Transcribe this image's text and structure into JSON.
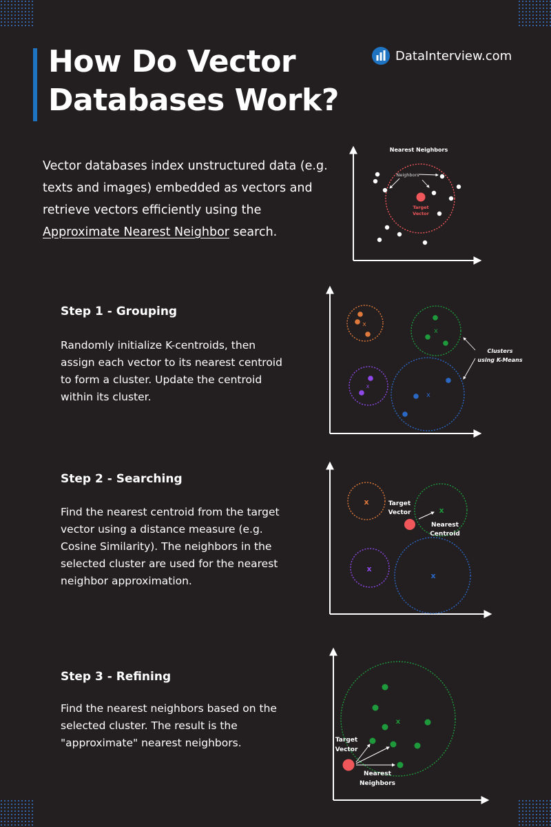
{
  "header": {
    "title_line1": "How Do Vector",
    "title_line2": "Databases Work?",
    "brand": "DataInterview.com",
    "brand_icon": "bar-chart-icon"
  },
  "intro": {
    "text_before": "Vector databases index unstructured data (e.g. texts and images) embedded as vectors and retrieve vectors efficiently using the ",
    "link_text": "Approximate Nearest Neighbor",
    "text_after": " search."
  },
  "diagram_intro": {
    "title": "Nearest Neighbors",
    "neighbors_label": "Neighbors",
    "target_label_1": "Target",
    "target_label_2": "Vector"
  },
  "steps": [
    {
      "title": "Step 1 - Grouping",
      "body": "Randomly initialize K-centroids, then assign each vector to its nearest centroid to form a cluster. Update the centroid within its cluster."
    },
    {
      "title": "Step 2 - Searching",
      "body": "Find the nearest centroid from the target vector using a distance measure (e.g. Cosine Similarity). The neighbors in the selected cluster are used for the nearest neighbor approximation."
    },
    {
      "title": "Step 3 - Refining",
      "body": "Find the nearest neighbors based on the selected cluster. The result is the \"approximate\" nearest neighbors."
    }
  ],
  "diagram_step1": {
    "clusters_label_1": "Clusters",
    "clusters_label_2": "using K-Means",
    "centroid_mark": "x"
  },
  "diagram_step2": {
    "target_label_1": "Target",
    "target_label_2": "Vector",
    "nearest_label_1": "Nearest",
    "nearest_label_2": "Centroid",
    "centroid_mark": "x"
  },
  "diagram_step3": {
    "target_label_1": "Target",
    "target_label_2": "Vector",
    "nearest_label_1": "Nearest",
    "nearest_label_2": "Neighbors",
    "centroid_mark": "x"
  },
  "colors": {
    "background": "#231f20",
    "accent_blue": "#1f74c2",
    "target_red": "#f0575a",
    "cluster_orange": "#e07a3c",
    "cluster_green": "#1e9a3c",
    "cluster_purple": "#8e48e8",
    "cluster_blue": "#2a68c4"
  }
}
